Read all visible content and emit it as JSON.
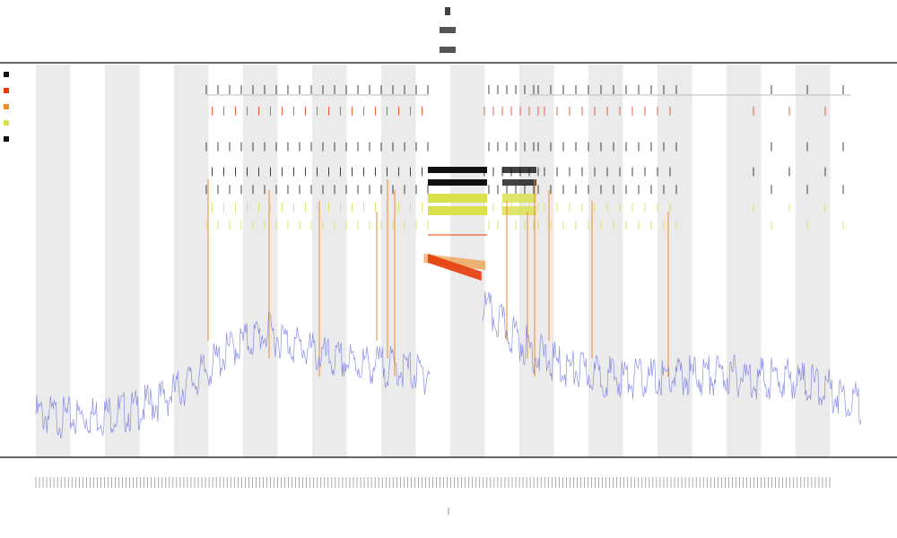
{
  "chart_data": {
    "type": "line",
    "title": "",
    "xlabel": "",
    "ylabel": "",
    "grid": false,
    "alternating_shading": true,
    "legend_position": "top-left",
    "colors": {
      "trace": "#6f74e0",
      "orange": "#f08a24",
      "red": "#e63b0a",
      "yellow": "#d8e04a",
      "black": "#111111",
      "gray": "#bbbbbb",
      "band": "#ebebeb",
      "axis": "#333333"
    },
    "ylim": [
      0,
      1
    ],
    "xlim": [
      0,
      1000
    ],
    "series": [
      {
        "type": "line",
        "x": [
          0,
          40,
          80,
          120,
          160,
          200,
          240,
          280,
          320,
          360,
          400,
          440,
          470,
          500,
          530,
          560,
          600,
          640,
          680,
          720,
          760,
          800,
          840,
          880,
          920,
          960,
          1000
        ],
        "values": [
          0.07,
          0.06,
          0.07,
          0.08,
          0.12,
          0.18,
          0.26,
          0.3,
          0.26,
          0.22,
          0.21,
          0.2,
          0.18,
          0.25,
          0.4,
          0.33,
          0.25,
          0.2,
          0.18,
          0.17,
          0.17,
          0.18,
          0.18,
          0.17,
          0.17,
          0.14,
          0.1
        ]
      },
      {
        "type": "band",
        "color": "orange",
        "x_range": [
          470,
          545
        ],
        "values": [
          0.52,
          0.5
        ]
      },
      {
        "type": "band",
        "color": "red",
        "x_range": [
          475,
          540
        ],
        "values": [
          0.52,
          0.47
        ]
      }
    ],
    "event_tracks": [
      {
        "color": "black",
        "level": 0.98
      },
      {
        "color": "red",
        "level": 0.92
      },
      {
        "color": "black",
        "level": 0.82
      },
      {
        "color": "black",
        "level": 0.75
      },
      {
        "color": "black",
        "level": 0.7
      },
      {
        "color": "yellow",
        "level": 0.65
      },
      {
        "color": "yellow",
        "level": 0.6
      }
    ]
  }
}
